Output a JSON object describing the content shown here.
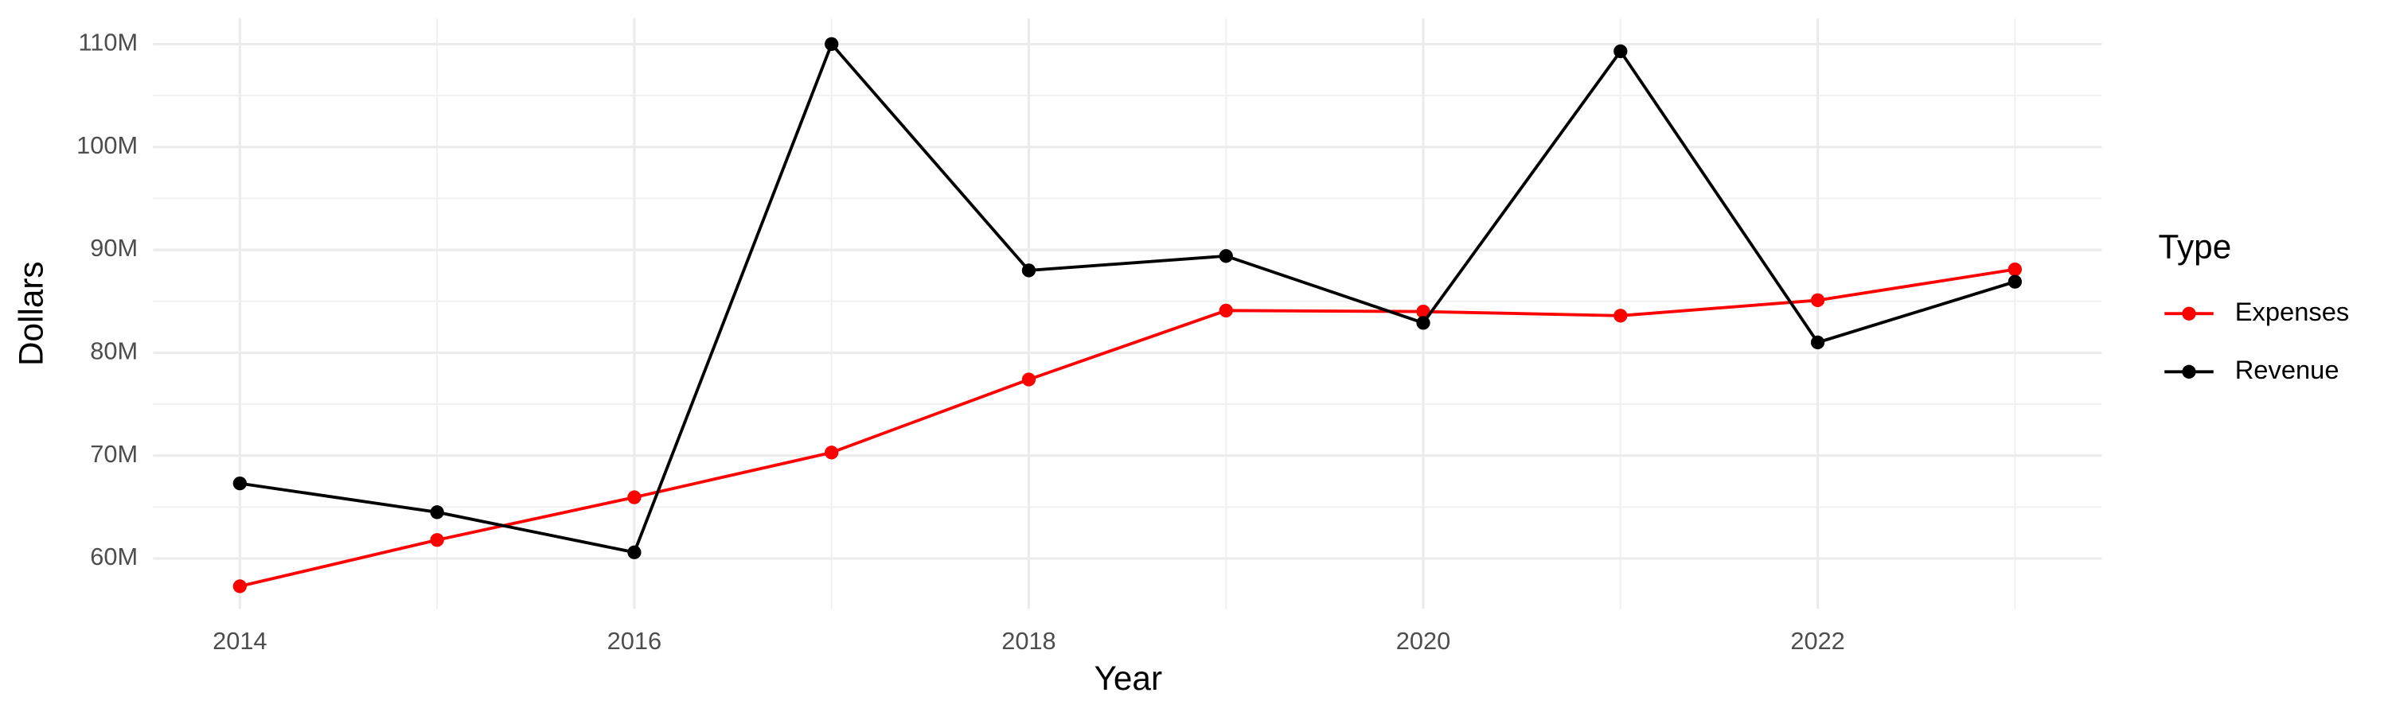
{
  "chart_data": {
    "type": "line",
    "x_label": "Year",
    "y_label": "Dollars",
    "legend_title": "Type",
    "legend_position": "right",
    "x": [
      2014,
      2015,
      2016,
      2017,
      2018,
      2019,
      2020,
      2021,
      2022,
      2023
    ],
    "series": [
      {
        "name": "Expenses",
        "color": "#ff0000",
        "values": [
          57300000,
          61800000,
          65950000,
          70300000,
          77400000,
          84100000,
          84000000,
          83600000,
          85100000,
          88100000
        ]
      },
      {
        "name": "Revenue",
        "color": "#000000",
        "values": [
          67300000,
          64500000,
          60600000,
          110000000,
          88000000,
          89400000,
          82900000,
          109300000,
          81000000,
          86900000
        ]
      }
    ],
    "xlim": [
      2013.56,
      2023.44
    ],
    "xticks": [
      2014,
      2016,
      2018,
      2020,
      2022
    ],
    "ylim": [
      55100000,
      112500000
    ],
    "yticks": [
      {
        "value": 60000000,
        "label": "60M"
      },
      {
        "value": 70000000,
        "label": "70M"
      },
      {
        "value": 80000000,
        "label": "80M"
      },
      {
        "value": 90000000,
        "label": "90M"
      },
      {
        "value": 100000000,
        "label": "100M"
      },
      {
        "value": 110000000,
        "label": "110M"
      }
    ],
    "grid": true,
    "minor_grid": true
  }
}
